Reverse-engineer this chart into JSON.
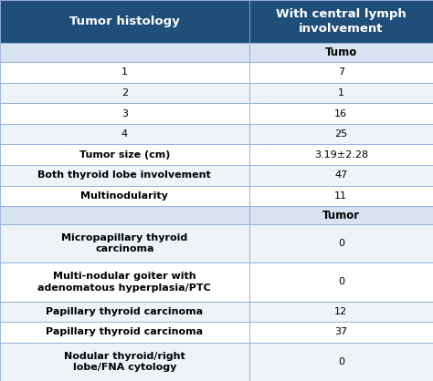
{
  "header_col1": "Tumor histology",
  "header_col2": "With central lymph\ninvolvement",
  "subheader1_col2": "Tumo",
  "subheader2_col2": "Tumor",
  "rows": [
    {
      "col1": "1",
      "col2": "7",
      "bold": false,
      "type": "normal"
    },
    {
      "col1": "2",
      "col2": "1",
      "bold": false,
      "type": "normal"
    },
    {
      "col1": "3",
      "col2": "16",
      "bold": false,
      "type": "normal"
    },
    {
      "col1": "4",
      "col2": "25",
      "bold": false,
      "type": "normal"
    },
    {
      "col1": "Tumor size (cm)",
      "col2": "3.19±2.28",
      "bold": true,
      "type": "normal"
    },
    {
      "col1": "Both thyroid lobe involvement",
      "col2": "47",
      "bold": true,
      "type": "normal"
    },
    {
      "col1": "Multinodularity",
      "col2": "11",
      "bold": true,
      "type": "normal"
    },
    {
      "col1": "",
      "col2": "Tumor",
      "bold": true,
      "type": "subheader"
    },
    {
      "col1": "Micropapillary thyroid\ncarcinoma",
      "col2": "0",
      "bold": true,
      "type": "tall"
    },
    {
      "col1": "Multi-nodular goiter with\nadenomatous hyperplasia/PTC",
      "col2": "0",
      "bold": true,
      "type": "tall"
    },
    {
      "col1": "Papillary thyroid carcinoma",
      "col2": "12",
      "bold": true,
      "type": "normal"
    },
    {
      "col1": "Papillary thyroid carcinoma",
      "col2": "37",
      "bold": true,
      "type": "normal"
    },
    {
      "col1": "Nodular thyroid/right\nlobe/FNA cytology",
      "col2": "0",
      "bold": true,
      "type": "tall"
    }
  ],
  "header_bg": "#1F4E79",
  "header_fg": "#FFFFFF",
  "subheader_bg": "#D9E2F0",
  "row_bg_white": "#FFFFFF",
  "row_bg_light": "#EEF3F8",
  "border_color": "#8FAADC",
  "col_split": 0.575,
  "fig_width": 4.74,
  "fig_height": 4.18,
  "dpi": 100
}
